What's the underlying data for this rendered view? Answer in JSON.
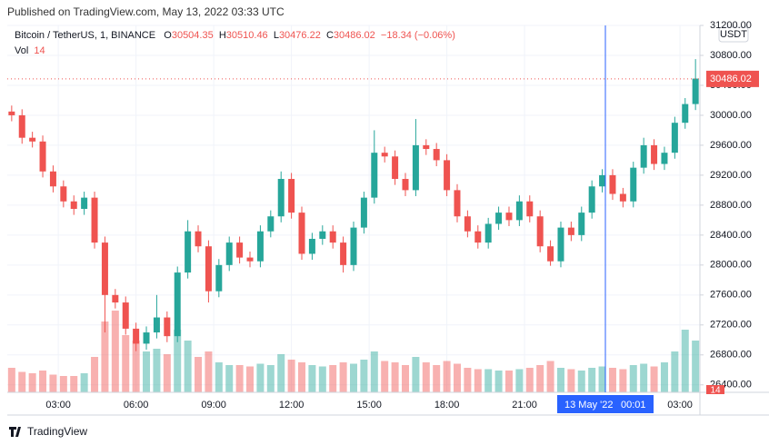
{
  "publish_note": "Published on TradingView.com, May 13, 2022 03:33 UTC",
  "legend": {
    "symbol": "Bitcoin / TetherUS, 1, BINANCE",
    "o_label": "O",
    "o": 30504.35,
    "h_label": "H",
    "h": 30510.46,
    "l_label": "L",
    "l": 30476.22,
    "c_label": "C",
    "c": 30486.02,
    "change": "−18.34 (−0.06%)",
    "vol_label": "Vol",
    "vol": 14
  },
  "currency": "USDT",
  "crosshair": {
    "date": "13 May '22",
    "time": "00:01"
  },
  "brand": "TradingView",
  "chart_data": {
    "type": "candlestick",
    "x": [
      1.2,
      1.6,
      2.0,
      2.4,
      2.8,
      3.2,
      3.6,
      4.0,
      4.4,
      4.8,
      5.2,
      5.6,
      6.0,
      6.4,
      6.8,
      7.2,
      7.6,
      8.0,
      8.4,
      8.8,
      9.2,
      9.6,
      10.0,
      10.4,
      10.8,
      11.2,
      11.6,
      12.0,
      12.4,
      12.8,
      13.2,
      13.6,
      14.0,
      14.4,
      14.8,
      15.2,
      15.6,
      16.0,
      16.4,
      16.8,
      17.2,
      17.6,
      18.0,
      18.4,
      18.8,
      19.2,
      19.6,
      20.0,
      20.4,
      20.8,
      21.2,
      21.6,
      22.0,
      22.4,
      22.8,
      23.2,
      23.6,
      24.0,
      24.4,
      24.8,
      25.2,
      25.6,
      26.0,
      26.4,
      26.8,
      27.2,
      27.6
    ],
    "open": [
      30050,
      30000,
      29700,
      29650,
      29250,
      29050,
      28850,
      28750,
      28900,
      28300,
      27600,
      27500,
      27150,
      26950,
      27100,
      27300,
      27050,
      27900,
      28450,
      28250,
      27650,
      28000,
      28300,
      28100,
      28050,
      28450,
      28650,
      29150,
      28700,
      28150,
      28350,
      28450,
      28300,
      28000,
      28500,
      28900,
      29500,
      29450,
      29150,
      29000,
      29600,
      29550,
      29400,
      29000,
      28650,
      28450,
      28300,
      28550,
      28700,
      28600,
      28850,
      28650,
      28250,
      28050,
      28500,
      28400,
      28700,
      29050,
      29200,
      28950,
      28850,
      29300,
      29600,
      29350,
      29500,
      29900,
      30150
    ],
    "high": [
      30130,
      30080,
      29780,
      29730,
      29330,
      29130,
      28930,
      28980,
      28980,
      28380,
      27680,
      27580,
      27230,
      27180,
      27600,
      27380,
      27980,
      28600,
      28530,
      28330,
      28080,
      28380,
      28380,
      28180,
      28530,
      28730,
      29250,
      29230,
      28780,
      28430,
      28530,
      28530,
      28380,
      28580,
      28980,
      29800,
      29580,
      29530,
      29230,
      29950,
      29680,
      29630,
      29480,
      29080,
      28730,
      28530,
      28630,
      28780,
      28780,
      28930,
      28930,
      28730,
      28330,
      28580,
      28580,
      28780,
      29130,
      29280,
      29280,
      29030,
      29380,
      29700,
      29680,
      29580,
      29980,
      30230,
      30750
    ],
    "low": [
      29920,
      29620,
      29570,
      29170,
      28970,
      28770,
      28670,
      28670,
      28220,
      27100,
      27420,
      27070,
      26850,
      26870,
      27020,
      26970,
      26970,
      27820,
      28170,
      27500,
      27570,
      27920,
      28020,
      27970,
      27970,
      28370,
      28570,
      28620,
      28070,
      28070,
      28270,
      28220,
      27900,
      27920,
      28420,
      28820,
      29370,
      29070,
      28920,
      28920,
      29470,
      29320,
      28920,
      28570,
      28370,
      28220,
      28220,
      28470,
      28520,
      28520,
      28570,
      28170,
      27990,
      27970,
      28320,
      28320,
      28620,
      28970,
      28870,
      28770,
      28770,
      29220,
      29270,
      29270,
      29420,
      29820,
      30070
    ],
    "close": [
      30000,
      29700,
      29650,
      29250,
      29050,
      28850,
      28750,
      28900,
      28300,
      27600,
      27500,
      27150,
      26950,
      27100,
      27300,
      27050,
      27900,
      28450,
      28250,
      27650,
      28000,
      28300,
      28100,
      28050,
      28450,
      28650,
      29150,
      28700,
      28150,
      28350,
      28450,
      28300,
      28000,
      28500,
      28900,
      29500,
      29450,
      29150,
      29000,
      29600,
      29550,
      29400,
      29000,
      28650,
      28450,
      28300,
      28550,
      28700,
      28600,
      28850,
      28650,
      28250,
      28050,
      28500,
      28400,
      28700,
      29050,
      29200,
      28950,
      28850,
      29300,
      29600,
      29350,
      29500,
      29900,
      30150,
      30490
    ],
    "volume": [
      180,
      150,
      140,
      160,
      130,
      120,
      120,
      140,
      260,
      520,
      600,
      420,
      380,
      300,
      320,
      280,
      460,
      380,
      260,
      300,
      220,
      200,
      200,
      190,
      210,
      200,
      280,
      240,
      220,
      200,
      190,
      200,
      220,
      210,
      240,
      300,
      230,
      220,
      200,
      260,
      220,
      200,
      230,
      210,
      180,
      170,
      170,
      160,
      160,
      170,
      180,
      200,
      230,
      180,
      170,
      160,
      180,
      190,
      180,
      170,
      200,
      210,
      190,
      220,
      300,
      460,
      380
    ],
    "up_color": "#26a69a",
    "down_color": "#ef5350",
    "last_price": 30486.02,
    "xlim": [
      1.03,
      27.77
    ],
    "xticks": [
      {
        "value": 3,
        "label": "03:00"
      },
      {
        "value": 6,
        "label": "06:00"
      },
      {
        "value": 9,
        "label": "09:00"
      },
      {
        "value": 12,
        "label": "12:00"
      },
      {
        "value": 15,
        "label": "15:00"
      },
      {
        "value": 18,
        "label": "18:00"
      },
      {
        "value": 21,
        "label": "21:00"
      },
      {
        "value": 27,
        "label": "03:00"
      }
    ],
    "ylim": [
      26300,
      31200
    ],
    "yticks": [
      {
        "value": 26400,
        "label": "26400.00"
      },
      {
        "value": 26800,
        "label": "26800.00"
      },
      {
        "value": 27200,
        "label": "27200.00"
      },
      {
        "value": 27600,
        "label": "27600.00"
      },
      {
        "value": 28000,
        "label": "28000.00"
      },
      {
        "value": 28400,
        "label": "28400.00"
      },
      {
        "value": 28800,
        "label": "28800.00"
      },
      {
        "value": 29200,
        "label": "29200.00"
      },
      {
        "value": 29600,
        "label": "29600.00"
      },
      {
        "value": 30000,
        "label": "30000.00"
      },
      {
        "value": 30400,
        "label": "30400.00"
      },
      {
        "value": 30800,
        "label": "30800.00"
      },
      {
        "value": 31200,
        "label": "31200.00"
      }
    ],
    "grid": true
  }
}
